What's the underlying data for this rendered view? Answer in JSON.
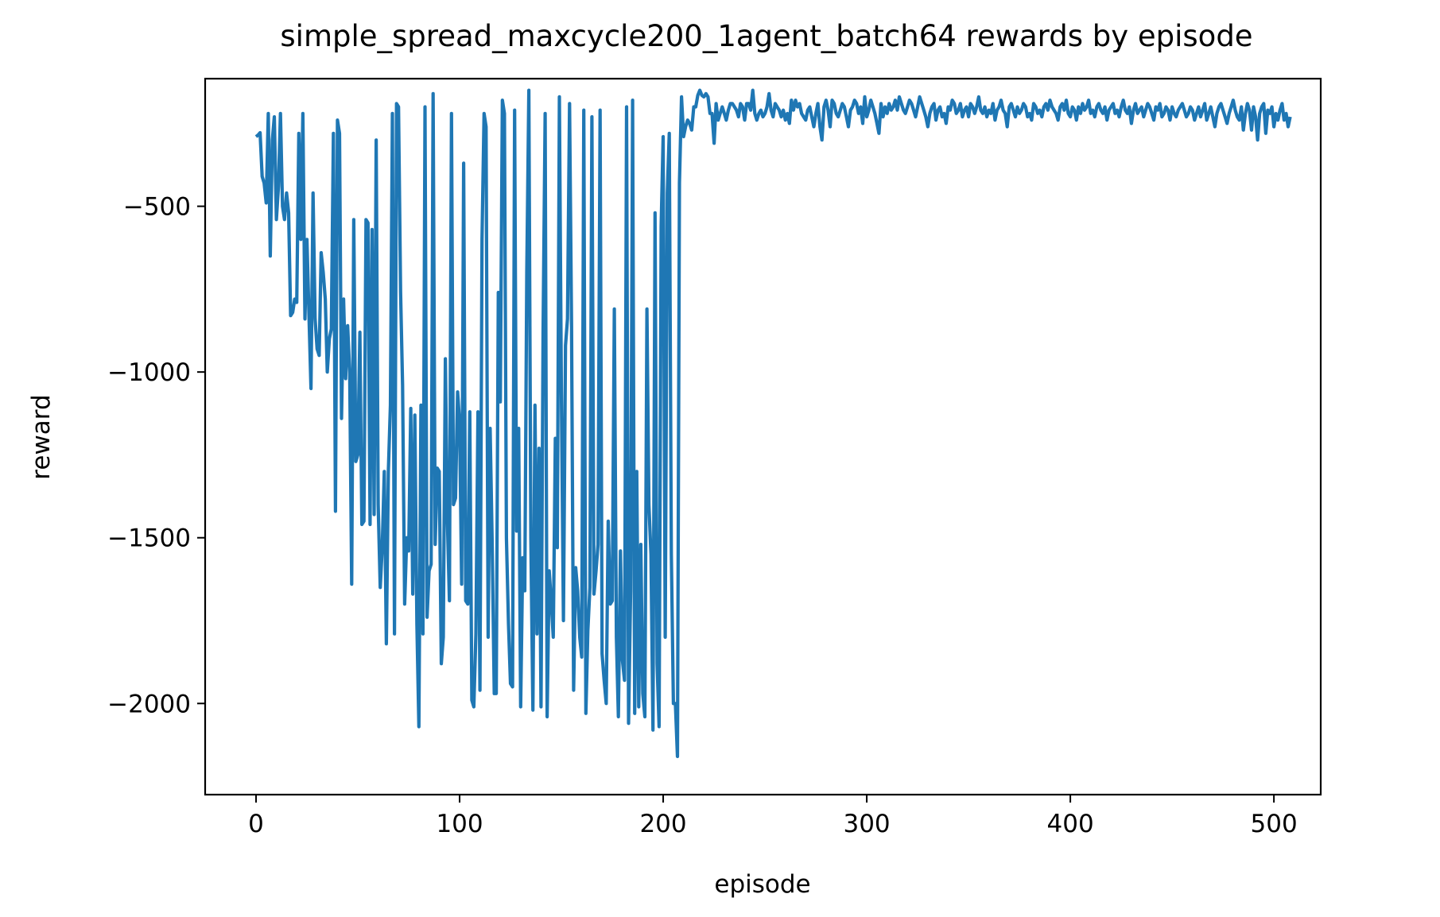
{
  "chart_data": {
    "type": "line",
    "title": "simple_spread_maxcycle200_1agent_batch64 rewards by episode",
    "xlabel": "episode",
    "ylabel": "reward",
    "xlim": [
      -25,
      523
    ],
    "ylim": [
      -2275,
      -115
    ],
    "x_ticks": [
      0,
      100,
      200,
      300,
      400,
      500
    ],
    "y_ticks": [
      -2000,
      -1500,
      -1000,
      -500
    ],
    "x_tick_labels": [
      "0",
      "100",
      "200",
      "300",
      "400",
      "500"
    ],
    "y_tick_labels": [
      "−2000",
      "−1500",
      "−1000",
      "−500"
    ],
    "grid": false,
    "line_color": "#1f77b4",
    "series": [
      {
        "name": "",
        "x_start": 0,
        "x_step": 1,
        "values": [
          -290,
          -285,
          -278,
          -410,
          -430,
          -490,
          -220,
          -650,
          -300,
          -230,
          -540,
          -440,
          -220,
          -500,
          -540,
          -460,
          -520,
          -830,
          -820,
          -780,
          -790,
          -280,
          -600,
          -220,
          -840,
          -600,
          -830,
          -1050,
          -460,
          -840,
          -930,
          -950,
          -640,
          -700,
          -780,
          -1000,
          -900,
          -870,
          -280,
          -1420,
          -240,
          -280,
          -1140,
          -780,
          -1020,
          -860,
          -1000,
          -1640,
          -540,
          -1270,
          -1250,
          -880,
          -1460,
          -1450,
          -540,
          -550,
          -1460,
          -570,
          -1430,
          -300,
          -1400,
          -1650,
          -1530,
          -1300,
          -1820,
          -1300,
          -1100,
          -220,
          -1790,
          -190,
          -200,
          -760,
          -1040,
          -1700,
          -1500,
          -1540,
          -1110,
          -1670,
          -1130,
          -1760,
          -2070,
          -1100,
          -1790,
          -200,
          -1740,
          -1600,
          -1580,
          -160,
          -1520,
          -1290,
          -1300,
          -1880,
          -1800,
          -960,
          -1450,
          -1690,
          -220,
          -1400,
          -1380,
          -1060,
          -1150,
          -1640,
          -370,
          -1690,
          -1700,
          -1120,
          -1990,
          -2010,
          -1790,
          -1120,
          -1960,
          -600,
          -220,
          -260,
          -1800,
          -1170,
          -1520,
          -1970,
          -1970,
          -760,
          -1090,
          -180,
          -220,
          -1500,
          -1760,
          -1940,
          -1950,
          -210,
          -1480,
          -1170,
          -2010,
          -1560,
          -1660,
          -700,
          -150,
          -1500,
          -2020,
          -1100,
          -1790,
          -1230,
          -2010,
          -880,
          -220,
          -2040,
          -1600,
          -1690,
          -1800,
          -1200,
          -1530,
          -170,
          -1060,
          -1750,
          -920,
          -840,
          -190,
          -860,
          -1960,
          -1590,
          -1660,
          -1800,
          -1860,
          -210,
          -2030,
          -1780,
          -1650,
          -230,
          -1670,
          -1600,
          -1520,
          -210,
          -1850,
          -1930,
          -2000,
          -1450,
          -1700,
          -1690,
          -810,
          -1800,
          -2040,
          -1540,
          -1870,
          -1930,
          -200,
          -2060,
          -1660,
          -180,
          -2030,
          -1300,
          -2010,
          -1520,
          -1970,
          -2040,
          -810,
          -1400,
          -1550,
          -2080,
          -520,
          -1880,
          -2070,
          -560,
          -290,
          -1800,
          -460,
          -280,
          -1550,
          -2000,
          -2000,
          -2160,
          -430,
          -170,
          -290,
          -260,
          -240,
          -250,
          -270,
          -200,
          -200,
          -165,
          -150,
          -165,
          -170,
          -160,
          -170,
          -220,
          -220,
          -310,
          -190,
          -240,
          -220,
          -200,
          -220,
          -240,
          -210,
          -190,
          -190,
          -200,
          -210,
          -230,
          -190,
          -200,
          -240,
          -190,
          -190,
          -210,
          -150,
          -220,
          -240,
          -220,
          -210,
          -230,
          -220,
          -200,
          -160,
          -210,
          -230,
          -190,
          -200,
          -210,
          -230,
          -210,
          -240,
          -220,
          -250,
          -180,
          -210,
          -180,
          -200,
          -190,
          -220,
          -230,
          -240,
          -210,
          -200,
          -230,
          -260,
          -220,
          -190,
          -260,
          -300,
          -200,
          -180,
          -210,
          -260,
          -180,
          -190,
          -220,
          -230,
          -210,
          -190,
          -200,
          -230,
          -260,
          -210,
          -200,
          -180,
          -190,
          -220,
          -200,
          -250,
          -170,
          -230,
          -210,
          -180,
          -200,
          -220,
          -250,
          -280,
          -190,
          -230,
          -200,
          -220,
          -190,
          -210,
          -200,
          -180,
          -210,
          -170,
          -190,
          -210,
          -220,
          -200,
          -180,
          -190,
          -210,
          -230,
          -200,
          -170,
          -190,
          -210,
          -230,
          -260,
          -220,
          -200,
          -190,
          -240,
          -210,
          -200,
          -230,
          -220,
          -250,
          -200,
          -210,
          -180,
          -190,
          -220,
          -210,
          -190,
          -230,
          -210,
          -200,
          -230,
          -190,
          -200,
          -220,
          -200,
          -170,
          -210,
          -220,
          -200,
          -230,
          -210,
          -220,
          -190,
          -240,
          -210,
          -200,
          -180,
          -210,
          -220,
          -260,
          -200,
          -190,
          -210,
          -230,
          -200,
          -220,
          -210,
          -190,
          -200,
          -230,
          -220,
          -240,
          -190,
          -200,
          -220,
          -210,
          -230,
          -200,
          -190,
          -210,
          -180,
          -200,
          -210,
          -220,
          -240,
          -200,
          -190,
          -210,
          -180,
          -220,
          -230,
          -200,
          -210,
          -240,
          -200,
          -220,
          -190,
          -210,
          -200,
          -180,
          -220,
          -210,
          -230,
          -200,
          -190,
          -210,
          -220,
          -200,
          -240,
          -210,
          -200,
          -190,
          -220,
          -210,
          -230,
          -200,
          -180,
          -210,
          -220,
          -200,
          -250,
          -210,
          -190,
          -220,
          -210,
          -200,
          -230,
          -210,
          -190,
          -200,
          -220,
          -240,
          -200,
          -210,
          -190,
          -230,
          -220,
          -200,
          -210,
          -240,
          -200,
          -220,
          -230,
          -210,
          -200,
          -190,
          -210,
          -230,
          -220,
          -200,
          -210,
          -240,
          -220,
          -200,
          -230,
          -210,
          -190,
          -240,
          -220,
          -200,
          -230,
          -260,
          -220,
          -200,
          -190,
          -210,
          -230,
          -250,
          -220,
          -200,
          -180,
          -210,
          -230,
          -240,
          -200,
          -270,
          -220,
          -190,
          -210,
          -270,
          -200,
          -230,
          -300,
          -220,
          -200,
          -190,
          -280,
          -210,
          -220,
          -200,
          -260,
          -220,
          -240,
          -210,
          -190,
          -240,
          -220,
          -260,
          -230
        ]
      }
    ]
  }
}
